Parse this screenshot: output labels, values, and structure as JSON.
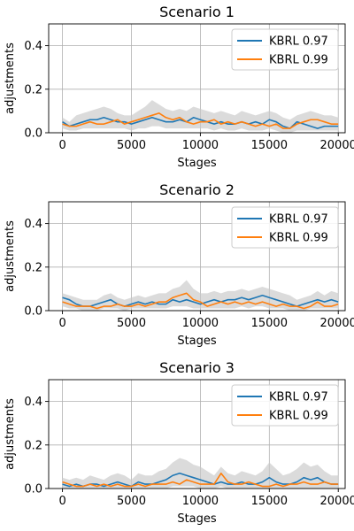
{
  "chart_data": [
    {
      "type": "line",
      "title": "Scenario 1",
      "xlabel": "Stages",
      "ylabel": "adjustments",
      "xlim": [
        -1000,
        20500
      ],
      "ylim": [
        0,
        0.5
      ],
      "xticks": [
        0,
        5000,
        10000,
        15000,
        20000
      ],
      "xtick_labels": [
        "0",
        "5000",
        "10000",
        "15000",
        "20000"
      ],
      "yticks": [
        0.0,
        0.2,
        0.4
      ],
      "ytick_labels": [
        "0.0",
        "0.2",
        "0.4"
      ],
      "grid": true,
      "legend_position": "top-right",
      "x": [
        0,
        500,
        1000,
        1500,
        2000,
        2500,
        3000,
        3500,
        4000,
        4500,
        5000,
        5500,
        6000,
        6500,
        7000,
        7500,
        8000,
        8500,
        9000,
        9500,
        10000,
        10500,
        11000,
        11500,
        12000,
        12500,
        13000,
        13500,
        14000,
        14500,
        15000,
        15500,
        16000,
        16500,
        17000,
        17500,
        18000,
        18500,
        19000,
        19500,
        20000
      ],
      "series": [
        {
          "name": "KBRL 0.97",
          "color": "#1f77b4",
          "values": [
            0.05,
            0.03,
            0.04,
            0.05,
            0.06,
            0.06,
            0.07,
            0.06,
            0.05,
            0.05,
            0.04,
            0.05,
            0.06,
            0.07,
            0.06,
            0.05,
            0.05,
            0.06,
            0.05,
            0.07,
            0.06,
            0.05,
            0.04,
            0.05,
            0.04,
            0.04,
            0.05,
            0.04,
            0.05,
            0.04,
            0.06,
            0.05,
            0.03,
            0.02,
            0.05,
            0.04,
            0.03,
            0.02,
            0.03,
            0.03,
            0.03
          ]
        },
        {
          "name": "KBRL 0.99",
          "color": "#ff7f0e",
          "values": [
            0.04,
            0.03,
            0.03,
            0.04,
            0.05,
            0.04,
            0.04,
            0.05,
            0.06,
            0.04,
            0.05,
            0.06,
            0.07,
            0.08,
            0.09,
            0.07,
            0.06,
            0.07,
            0.05,
            0.04,
            0.05,
            0.05,
            0.06,
            0.04,
            0.05,
            0.04,
            0.05,
            0.04,
            0.03,
            0.04,
            0.03,
            0.04,
            0.02,
            0.02,
            0.04,
            0.05,
            0.06,
            0.06,
            0.05,
            0.04,
            0.04
          ]
        }
      ],
      "band_upper": [
        0.07,
        0.05,
        0.08,
        0.09,
        0.1,
        0.11,
        0.12,
        0.11,
        0.09,
        0.08,
        0.08,
        0.1,
        0.12,
        0.15,
        0.13,
        0.11,
        0.1,
        0.11,
        0.1,
        0.12,
        0.11,
        0.1,
        0.09,
        0.1,
        0.09,
        0.08,
        0.1,
        0.09,
        0.08,
        0.09,
        0.1,
        0.09,
        0.07,
        0.06,
        0.08,
        0.09,
        0.1,
        0.09,
        0.08,
        0.08,
        0.07
      ],
      "band_lower": [
        0.02,
        0.01,
        0.01,
        0.02,
        0.02,
        0.02,
        0.02,
        0.02,
        0.02,
        0.02,
        0.01,
        0.02,
        0.02,
        0.03,
        0.03,
        0.02,
        0.02,
        0.02,
        0.02,
        0.02,
        0.02,
        0.02,
        0.01,
        0.02,
        0.01,
        0.01,
        0.02,
        0.01,
        0.01,
        0.01,
        0.02,
        0.01,
        0.0,
        0.0,
        0.01,
        0.01,
        0.01,
        0.01,
        0.01,
        0.01,
        0.01
      ]
    },
    {
      "type": "line",
      "title": "Scenario 2",
      "xlabel": "Stages",
      "ylabel": "adjustments",
      "xlim": [
        -1000,
        20500
      ],
      "ylim": [
        0,
        0.5
      ],
      "xticks": [
        0,
        5000,
        10000,
        15000,
        20000
      ],
      "xtick_labels": [
        "0",
        "5000",
        "10000",
        "15000",
        "20000"
      ],
      "yticks": [
        0.0,
        0.2,
        0.4
      ],
      "ytick_labels": [
        "0.0",
        "0.2",
        "0.4"
      ],
      "grid": true,
      "legend_position": "top-right",
      "x": [
        0,
        500,
        1000,
        1500,
        2000,
        2500,
        3000,
        3500,
        4000,
        4500,
        5000,
        5500,
        6000,
        6500,
        7000,
        7500,
        8000,
        8500,
        9000,
        9500,
        10000,
        10500,
        11000,
        11500,
        12000,
        12500,
        13000,
        13500,
        14000,
        14500,
        15000,
        15500,
        16000,
        16500,
        17000,
        17500,
        18000,
        18500,
        19000,
        19500,
        20000
      ],
      "series": [
        {
          "name": "KBRL 0.97",
          "color": "#1f77b4",
          "values": [
            0.06,
            0.05,
            0.03,
            0.02,
            0.02,
            0.03,
            0.04,
            0.05,
            0.03,
            0.02,
            0.03,
            0.04,
            0.03,
            0.04,
            0.03,
            0.03,
            0.05,
            0.04,
            0.05,
            0.04,
            0.03,
            0.04,
            0.05,
            0.04,
            0.05,
            0.05,
            0.06,
            0.05,
            0.06,
            0.07,
            0.06,
            0.05,
            0.04,
            0.03,
            0.02,
            0.03,
            0.04,
            0.05,
            0.04,
            0.05,
            0.04
          ]
        },
        {
          "name": "KBRL 0.99",
          "color": "#ff7f0e",
          "values": [
            0.04,
            0.03,
            0.02,
            0.02,
            0.02,
            0.01,
            0.02,
            0.02,
            0.03,
            0.02,
            0.02,
            0.03,
            0.02,
            0.03,
            0.04,
            0.04,
            0.06,
            0.07,
            0.08,
            0.05,
            0.04,
            0.02,
            0.03,
            0.04,
            0.03,
            0.04,
            0.03,
            0.04,
            0.03,
            0.04,
            0.03,
            0.02,
            0.03,
            0.02,
            0.02,
            0.01,
            0.02,
            0.04,
            0.02,
            0.02,
            0.03
          ]
        }
      ],
      "band_upper": [
        0.08,
        0.07,
        0.06,
        0.05,
        0.05,
        0.05,
        0.07,
        0.08,
        0.06,
        0.05,
        0.06,
        0.07,
        0.06,
        0.07,
        0.08,
        0.08,
        0.1,
        0.11,
        0.14,
        0.1,
        0.08,
        0.08,
        0.09,
        0.08,
        0.09,
        0.09,
        0.1,
        0.09,
        0.1,
        0.11,
        0.1,
        0.09,
        0.08,
        0.07,
        0.05,
        0.06,
        0.07,
        0.09,
        0.07,
        0.09,
        0.08
      ],
      "band_lower": [
        0.02,
        0.01,
        0.01,
        0.0,
        0.0,
        0.0,
        0.01,
        0.01,
        0.01,
        0.0,
        0.01,
        0.01,
        0.01,
        0.01,
        0.01,
        0.01,
        0.02,
        0.02,
        0.02,
        0.01,
        0.01,
        0.01,
        0.01,
        0.01,
        0.01,
        0.01,
        0.02,
        0.01,
        0.02,
        0.02,
        0.01,
        0.01,
        0.01,
        0.0,
        0.0,
        0.0,
        0.01,
        0.01,
        0.01,
        0.01,
        0.01
      ]
    },
    {
      "type": "line",
      "title": "Scenario 3",
      "xlabel": "Stages",
      "ylabel": "adjustments",
      "xlim": [
        -1000,
        20500
      ],
      "ylim": [
        0,
        0.5
      ],
      "xticks": [
        0,
        5000,
        10000,
        15000,
        20000
      ],
      "xtick_labels": [
        "0",
        "5000",
        "10000",
        "15000",
        "20000"
      ],
      "yticks": [
        0.0,
        0.2,
        0.4
      ],
      "ytick_labels": [
        "0.0",
        "0.2",
        "0.4"
      ],
      "grid": true,
      "legend_position": "top-right",
      "x": [
        0,
        500,
        1000,
        1500,
        2000,
        2500,
        3000,
        3500,
        4000,
        4500,
        5000,
        5500,
        6000,
        6500,
        7000,
        7500,
        8000,
        8500,
        9000,
        9500,
        10000,
        10500,
        11000,
        11500,
        12000,
        12500,
        13000,
        13500,
        14000,
        14500,
        15000,
        15500,
        16000,
        16500,
        17000,
        17500,
        18000,
        18500,
        19000,
        19500,
        20000
      ],
      "series": [
        {
          "name": "KBRL 0.97",
          "color": "#1f77b4",
          "values": [
            0.02,
            0.01,
            0.02,
            0.01,
            0.02,
            0.02,
            0.01,
            0.02,
            0.03,
            0.02,
            0.01,
            0.03,
            0.02,
            0.02,
            0.03,
            0.04,
            0.06,
            0.07,
            0.06,
            0.05,
            0.04,
            0.03,
            0.02,
            0.03,
            0.02,
            0.02,
            0.03,
            0.02,
            0.02,
            0.03,
            0.05,
            0.03,
            0.02,
            0.02,
            0.03,
            0.05,
            0.04,
            0.05,
            0.03,
            0.02,
            0.02
          ]
        },
        {
          "name": "KBRL 0.99",
          "color": "#ff7f0e",
          "values": [
            0.03,
            0.02,
            0.01,
            0.01,
            0.02,
            0.01,
            0.02,
            0.01,
            0.02,
            0.01,
            0.01,
            0.02,
            0.01,
            0.02,
            0.02,
            0.02,
            0.03,
            0.02,
            0.04,
            0.03,
            0.02,
            0.02,
            0.02,
            0.07,
            0.03,
            0.02,
            0.02,
            0.03,
            0.02,
            0.01,
            0.01,
            0.02,
            0.01,
            0.02,
            0.02,
            0.03,
            0.02,
            0.02,
            0.03,
            0.02,
            0.02
          ]
        }
      ],
      "band_upper": [
        0.05,
        0.04,
        0.05,
        0.04,
        0.06,
        0.05,
        0.04,
        0.06,
        0.07,
        0.06,
        0.04,
        0.07,
        0.06,
        0.06,
        0.08,
        0.09,
        0.12,
        0.14,
        0.13,
        0.11,
        0.1,
        0.08,
        0.06,
        0.1,
        0.07,
        0.06,
        0.08,
        0.07,
        0.06,
        0.08,
        0.12,
        0.09,
        0.06,
        0.07,
        0.09,
        0.12,
        0.1,
        0.11,
        0.08,
        0.06,
        0.06
      ],
      "band_lower": [
        0.0,
        0.0,
        0.0,
        0.0,
        0.0,
        0.0,
        0.0,
        0.0,
        0.0,
        0.0,
        0.0,
        0.0,
        0.0,
        0.0,
        0.0,
        0.0,
        0.01,
        0.01,
        0.01,
        0.01,
        0.0,
        0.0,
        0.0,
        0.01,
        0.0,
        0.0,
        0.0,
        0.0,
        0.0,
        0.0,
        0.0,
        0.0,
        0.0,
        0.0,
        0.0,
        0.0,
        0.0,
        0.0,
        0.0,
        0.0,
        0.0
      ]
    }
  ]
}
